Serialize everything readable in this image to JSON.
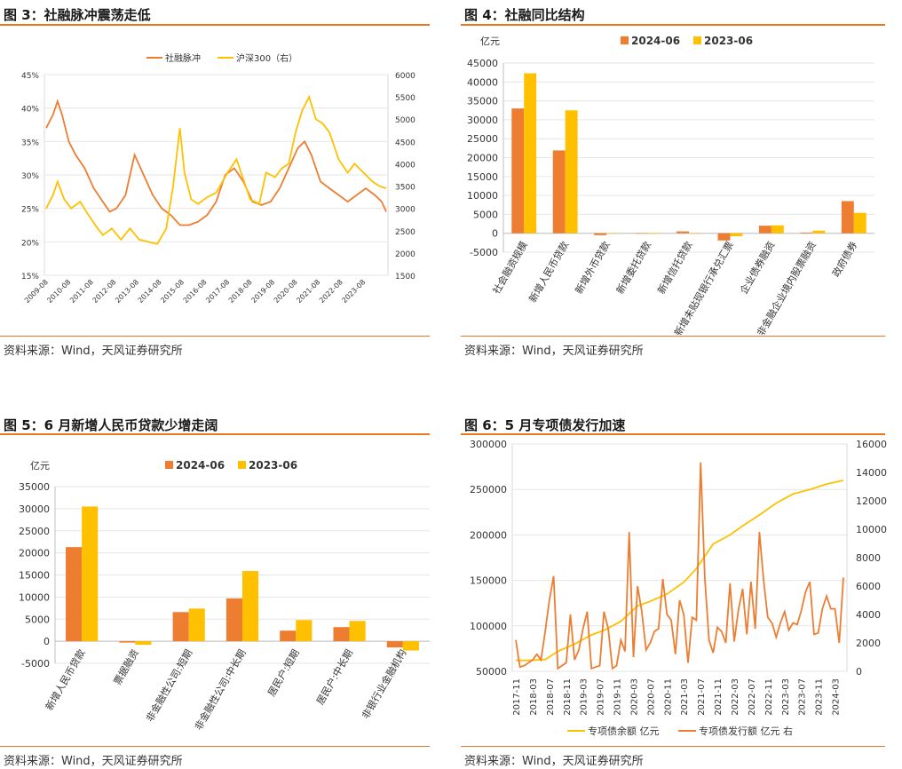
{
  "colors": {
    "orange": "#ed7d31",
    "gold": "#ffc000",
    "rule": "#e87722"
  },
  "chart_data": [
    {
      "type": "line",
      "title": "图 3：社融脉冲震荡走低",
      "source": "资料来源：Wind，天风证券研究所",
      "legend": [
        "社融脉冲",
        "沪深300（右）"
      ],
      "legend_position": "top",
      "grid": true,
      "x_ticks": [
        "2009-08",
        "2010-08",
        "2011-08",
        "2012-08",
        "2013-08",
        "2014-08",
        "2015-08",
        "2016-08",
        "2017-08",
        "2018-08",
        "2019-08",
        "2020-08",
        "2021-08",
        "2022-08",
        "2023-08"
      ],
      "y_ticks": [
        "15%",
        "20%",
        "25%",
        "30%",
        "35%",
        "40%",
        "45%"
      ],
      "y2_ticks": [
        "1500",
        "2000",
        "2500",
        "3000",
        "3500",
        "4000",
        "4500",
        "5000",
        "5500",
        "6000"
      ],
      "ylim": [
        15,
        45
      ],
      "y2lim": [
        1500,
        6000
      ],
      "x_range": [
        "2009-08",
        "2024-06"
      ],
      "series": [
        {
          "name": "社融脉冲",
          "axis": "left",
          "color": "#ed7d31",
          "x": [
            2009.5,
            2009.8,
            2010.0,
            2010.2,
            2010.5,
            2010.8,
            2011.2,
            2011.6,
            2012.0,
            2012.3,
            2012.6,
            2013.0,
            2013.4,
            2013.8,
            2014.2,
            2014.6,
            2015.0,
            2015.4,
            2015.8,
            2016.2,
            2016.6,
            2017.0,
            2017.4,
            2017.8,
            2018.2,
            2018.6,
            2019.0,
            2019.4,
            2019.8,
            2020.2,
            2020.6,
            2020.9,
            2021.2,
            2021.6,
            2022.0,
            2022.4,
            2022.8,
            2023.2,
            2023.6,
            2024.0,
            2024.3,
            2024.5
          ],
          "y": [
            37,
            39,
            41,
            39,
            35,
            33,
            31,
            28,
            26,
            24.5,
            25,
            27,
            33,
            30,
            27,
            25,
            24,
            22.5,
            22.5,
            23,
            24,
            26,
            30,
            31,
            29,
            26,
            25.5,
            26,
            28,
            31,
            34,
            35,
            33,
            29,
            28,
            27,
            26,
            27,
            28,
            27,
            26,
            24.5
          ]
        },
        {
          "name": "沪深300（右）",
          "axis": "right",
          "color": "#ffc000",
          "x": [
            2009.5,
            2009.8,
            2010.0,
            2010.3,
            2010.6,
            2011.0,
            2011.3,
            2011.7,
            2012.0,
            2012.4,
            2012.8,
            2013.2,
            2013.6,
            2014.0,
            2014.4,
            2014.8,
            2015.1,
            2015.4,
            2015.6,
            2015.9,
            2016.2,
            2016.6,
            2017.0,
            2017.5,
            2017.9,
            2018.1,
            2018.5,
            2018.9,
            2019.2,
            2019.6,
            2019.9,
            2020.2,
            2020.5,
            2020.8,
            2021.1,
            2021.4,
            2021.7,
            2022.0,
            2022.4,
            2022.8,
            2023.1,
            2023.5,
            2023.9,
            2024.2,
            2024.5
          ],
          "y": [
            3000,
            3300,
            3600,
            3200,
            3000,
            3150,
            2900,
            2600,
            2400,
            2550,
            2300,
            2550,
            2300,
            2250,
            2200,
            2550,
            3500,
            4800,
            3800,
            3200,
            3100,
            3250,
            3350,
            3800,
            4100,
            3800,
            3200,
            3100,
            3800,
            3700,
            3900,
            4000,
            4700,
            5200,
            5500,
            5000,
            4900,
            4700,
            4100,
            3800,
            4000,
            3800,
            3600,
            3500,
            3450
          ]
        }
      ]
    },
    {
      "type": "bar",
      "title": "图 4：社融同比结构",
      "source": "资料来源：Wind，天风证券研究所",
      "unit": "亿元",
      "legend_position": "top",
      "grid": true,
      "categories": [
        "社会融资规模",
        "新增人民币贷款",
        "新增外币贷款",
        "新增委托贷款",
        "新增信托贷款",
        "新增未贴现银行承兑汇票",
        "企业债券融资",
        "非金融企业境内股票融资",
        "政府债券"
      ],
      "series": [
        {
          "name": "2024-06",
          "color": "#ed7d31",
          "values": [
            33000,
            21900,
            -500,
            0,
            500,
            -1900,
            2000,
            200,
            8500
          ]
        },
        {
          "name": "2023-06",
          "color": "#ffc000",
          "values": [
            42300,
            32500,
            0,
            0,
            0,
            -800,
            2100,
            700,
            5400
          ]
        }
      ],
      "y_ticks": [
        "-5000",
        "0",
        "5000",
        "10000",
        "15000",
        "20000",
        "25000",
        "30000",
        "35000",
        "40000",
        "45000"
      ],
      "ylim": [
        -5000,
        45000
      ]
    },
    {
      "type": "bar",
      "title": "图 5：6 月新增人民币贷款少增走阔",
      "source": "资料来源：Wind，天风证券研究所",
      "unit": "亿元",
      "legend_position": "top",
      "grid": true,
      "categories": [
        "新增人民币贷款",
        "票据融资",
        "非金融性公司:短期",
        "非金融性公司:中长期",
        "居民户:短期",
        "居民户:中长期",
        "非银行业金融机构"
      ],
      "series": [
        {
          "name": "2024-06",
          "color": "#ed7d31",
          "values": [
            21300,
            -300,
            6600,
            9700,
            2400,
            3200,
            -1400
          ]
        },
        {
          "name": "2023-06",
          "color": "#ffc000",
          "values": [
            30500,
            -800,
            7400,
            15900,
            4800,
            4600,
            -2100
          ]
        }
      ],
      "y_ticks": [
        "-5000",
        "0",
        "5000",
        "10000",
        "15000",
        "20000",
        "25000",
        "30000",
        "35000"
      ],
      "ylim": [
        -5000,
        35000
      ]
    },
    {
      "type": "line",
      "title": "图 6：5 月专项债发行加速",
      "source": "资料来源：Wind，天风证券研究所",
      "legend": [
        "专项债余额 亿元",
        "专项债发行额 亿元 右"
      ],
      "legend_position": "bottom",
      "grid": true,
      "x_ticks": [
        "2017-11",
        "2018-03",
        "2018-07",
        "2018-11",
        "2019-03",
        "2019-07",
        "2019-11",
        "2020-03",
        "2020-07",
        "2020-11",
        "2021-03",
        "2021-07",
        "2021-11",
        "2022-03",
        "2022-07",
        "2022-11",
        "2023-03",
        "2023-07",
        "2023-11",
        "2024-03"
      ],
      "y_ticks": [
        "50000",
        "100000",
        "150000",
        "200000",
        "250000",
        "300000"
      ],
      "y2_ticks": [
        "0",
        "2000",
        "4000",
        "6000",
        "8000",
        "10000",
        "12000",
        "14000",
        "16000"
      ],
      "ylim": [
        50000,
        300000
      ],
      "y2lim": [
        0,
        16000
      ],
      "series": [
        {
          "name": "专项债余额 亿元",
          "axis": "left",
          "color": "#ffc000",
          "x": [
            0,
            3,
            7,
            10,
            14,
            18,
            21,
            25,
            29,
            32,
            36,
            40,
            43,
            47,
            51,
            54,
            58,
            62,
            66,
            70,
            74,
            78
          ],
          "y": [
            62000,
            62000,
            63000,
            72000,
            80000,
            90000,
            95000,
            105000,
            122000,
            127000,
            135000,
            148000,
            163000,
            190000,
            200000,
            210000,
            222000,
            235000,
            245000,
            250000,
            256000,
            260000
          ]
        },
        {
          "name": "专项债发行额 亿元 右",
          "axis": "right",
          "color": "#ed7d31",
          "x": [
            0,
            1,
            2,
            3,
            4,
            5,
            6,
            7,
            8,
            9,
            10,
            11,
            12,
            13,
            14,
            15,
            16,
            17,
            18,
            19,
            20,
            21,
            22,
            23,
            24,
            25,
            26,
            27,
            28,
            29,
            30,
            31,
            32,
            33,
            34,
            35,
            36,
            37,
            38,
            39,
            40,
            41,
            42,
            43,
            44,
            45,
            46,
            47,
            48,
            49,
            50,
            51,
            52,
            53,
            54,
            55,
            56,
            57,
            58,
            59,
            60,
            61,
            62,
            63,
            64,
            65,
            66,
            67,
            68,
            69,
            70,
            71,
            72,
            73,
            74,
            75,
            76,
            77,
            78
          ],
          "y": [
            2200,
            300,
            400,
            600,
            800,
            1200,
            800,
            2800,
            5000,
            6700,
            200,
            400,
            600,
            4000,
            800,
            1500,
            3000,
            4200,
            200,
            300,
            400,
            4200,
            3000,
            200,
            400,
            2200,
            1400,
            9800,
            1000,
            6000,
            4200,
            1500,
            2000,
            2800,
            3000,
            6500,
            4000,
            3600,
            1200,
            5000,
            4000,
            600,
            3800,
            3600,
            14700,
            6600,
            2200,
            1300,
            3100,
            2800,
            2000,
            6200,
            2100,
            4300,
            5800,
            2600,
            6300,
            3000,
            9800,
            6400,
            3800,
            3400,
            2400,
            3400,
            4200,
            2900,
            3400,
            3300,
            4300,
            5600,
            6300,
            2600,
            2700,
            4400,
            5300,
            4400,
            4400,
            2000,
            6600
          ]
        }
      ]
    }
  ]
}
